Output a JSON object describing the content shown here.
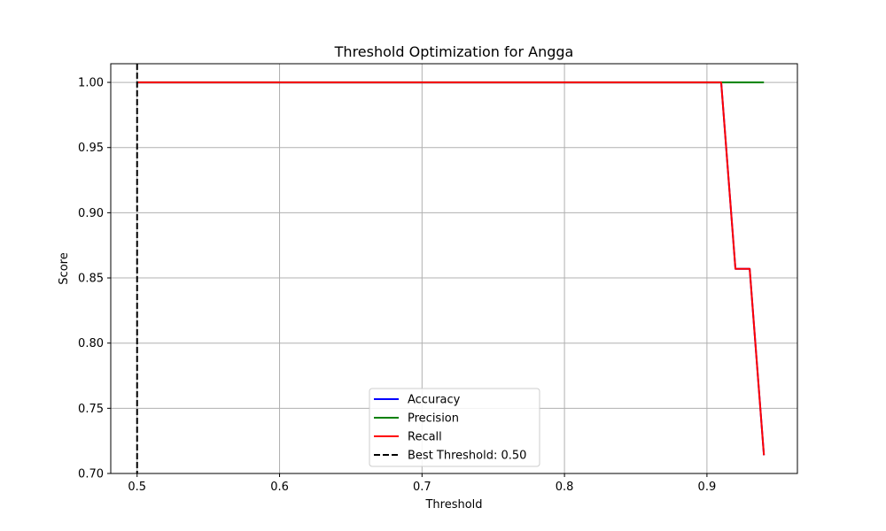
{
  "chart_data": {
    "type": "line",
    "title": "Threshold Optimization for Angga",
    "xlabel": "Threshold",
    "ylabel": "Score",
    "xlim": [
      0.4815,
      0.9635
    ],
    "ylim": [
      0.7,
      1.0143
    ],
    "grid": true,
    "legend_position": "lower-center",
    "xticks": [
      0.5,
      0.6,
      0.7,
      0.8,
      0.9
    ],
    "xtick_labels": [
      "0.5",
      "0.6",
      "0.7",
      "0.8",
      "0.9"
    ],
    "yticks": [
      0.7,
      0.75,
      0.8,
      0.85,
      0.9,
      0.95,
      1.0
    ],
    "ytick_labels": [
      "0.70",
      "0.75",
      "0.80",
      "0.85",
      "0.90",
      "0.95",
      "1.00"
    ],
    "series": [
      {
        "name": "Accuracy",
        "color": "#0000ff",
        "x": [
          0.5,
          0.51,
          0.52,
          0.53,
          0.54,
          0.55,
          0.56,
          0.57,
          0.58,
          0.59,
          0.6,
          0.61,
          0.62,
          0.63,
          0.64,
          0.65,
          0.66,
          0.67,
          0.68,
          0.69,
          0.7,
          0.71,
          0.72,
          0.73,
          0.74,
          0.75,
          0.76,
          0.77,
          0.78,
          0.79,
          0.8,
          0.81,
          0.82,
          0.83,
          0.84,
          0.85,
          0.86,
          0.87,
          0.88,
          0.89,
          0.9,
          0.91,
          0.92,
          0.93,
          0.94
        ],
        "y": [
          1.0,
          1.0,
          1.0,
          1.0,
          1.0,
          1.0,
          1.0,
          1.0,
          1.0,
          1.0,
          1.0,
          1.0,
          1.0,
          1.0,
          1.0,
          1.0,
          1.0,
          1.0,
          1.0,
          1.0,
          1.0,
          1.0,
          1.0,
          1.0,
          1.0,
          1.0,
          1.0,
          1.0,
          1.0,
          1.0,
          1.0,
          1.0,
          1.0,
          1.0,
          1.0,
          1.0,
          1.0,
          1.0,
          1.0,
          1.0,
          1.0,
          1.0,
          0.857,
          0.857,
          0.714
        ]
      },
      {
        "name": "Precision",
        "color": "#008000",
        "x": [
          0.5,
          0.51,
          0.52,
          0.53,
          0.54,
          0.55,
          0.56,
          0.57,
          0.58,
          0.59,
          0.6,
          0.61,
          0.62,
          0.63,
          0.64,
          0.65,
          0.66,
          0.67,
          0.68,
          0.69,
          0.7,
          0.71,
          0.72,
          0.73,
          0.74,
          0.75,
          0.76,
          0.77,
          0.78,
          0.79,
          0.8,
          0.81,
          0.82,
          0.83,
          0.84,
          0.85,
          0.86,
          0.87,
          0.88,
          0.89,
          0.9,
          0.91,
          0.92,
          0.93,
          0.94
        ],
        "y": [
          1.0,
          1.0,
          1.0,
          1.0,
          1.0,
          1.0,
          1.0,
          1.0,
          1.0,
          1.0,
          1.0,
          1.0,
          1.0,
          1.0,
          1.0,
          1.0,
          1.0,
          1.0,
          1.0,
          1.0,
          1.0,
          1.0,
          1.0,
          1.0,
          1.0,
          1.0,
          1.0,
          1.0,
          1.0,
          1.0,
          1.0,
          1.0,
          1.0,
          1.0,
          1.0,
          1.0,
          1.0,
          1.0,
          1.0,
          1.0,
          1.0,
          1.0,
          1.0,
          1.0,
          1.0
        ]
      },
      {
        "name": "Recall",
        "color": "#ff0000",
        "x": [
          0.5,
          0.51,
          0.52,
          0.53,
          0.54,
          0.55,
          0.56,
          0.57,
          0.58,
          0.59,
          0.6,
          0.61,
          0.62,
          0.63,
          0.64,
          0.65,
          0.66,
          0.67,
          0.68,
          0.69,
          0.7,
          0.71,
          0.72,
          0.73,
          0.74,
          0.75,
          0.76,
          0.77,
          0.78,
          0.79,
          0.8,
          0.81,
          0.82,
          0.83,
          0.84,
          0.85,
          0.86,
          0.87,
          0.88,
          0.89,
          0.9,
          0.91,
          0.92,
          0.93,
          0.94
        ],
        "y": [
          1.0,
          1.0,
          1.0,
          1.0,
          1.0,
          1.0,
          1.0,
          1.0,
          1.0,
          1.0,
          1.0,
          1.0,
          1.0,
          1.0,
          1.0,
          1.0,
          1.0,
          1.0,
          1.0,
          1.0,
          1.0,
          1.0,
          1.0,
          1.0,
          1.0,
          1.0,
          1.0,
          1.0,
          1.0,
          1.0,
          1.0,
          1.0,
          1.0,
          1.0,
          1.0,
          1.0,
          1.0,
          1.0,
          1.0,
          1.0,
          1.0,
          1.0,
          0.857,
          0.857,
          0.714
        ]
      }
    ],
    "vlines": [
      {
        "name": "Best Threshold: 0.50",
        "x": 0.5,
        "color": "#000000",
        "style": "dashed"
      }
    ],
    "legend": [
      {
        "label": "Accuracy",
        "color": "#0000ff",
        "style": "solid"
      },
      {
        "label": "Precision",
        "color": "#008000",
        "style": "solid"
      },
      {
        "label": "Recall",
        "color": "#ff0000",
        "style": "solid"
      },
      {
        "label": "Best Threshold: 0.50",
        "color": "#000000",
        "style": "dashed"
      }
    ]
  }
}
